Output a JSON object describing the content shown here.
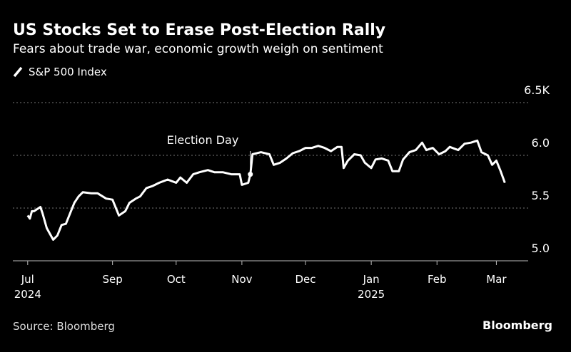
{
  "chart_data": {
    "type": "line",
    "title": "US Stocks Set to Erase Post-Election Rally",
    "subtitle": "Fears about trade war, economic growth weigh on sentiment",
    "source": "Source: Bloomberg",
    "brand": "Bloomberg",
    "annotation": {
      "text": "Election Day",
      "x": "2024-11-05"
    },
    "x": [
      "2024-07-23",
      "2024-07-24",
      "2024-07-25",
      "2024-07-26",
      "2024-07-29",
      "2024-07-30",
      "2024-08-01",
      "2024-08-04",
      "2024-08-06",
      "2024-08-08",
      "2024-08-10",
      "2024-08-12",
      "2024-08-14",
      "2024-08-16",
      "2024-08-18",
      "2024-08-22",
      "2024-08-25",
      "2024-08-29",
      "2024-09-01",
      "2024-09-04",
      "2024-09-07",
      "2024-09-09",
      "2024-09-12",
      "2024-09-14",
      "2024-09-17",
      "2024-09-20",
      "2024-09-23",
      "2024-09-27",
      "2024-10-01",
      "2024-10-03",
      "2024-10-06",
      "2024-10-09",
      "2024-10-12",
      "2024-10-16",
      "2024-10-19",
      "2024-10-23",
      "2024-10-27",
      "2024-10-31",
      "2024-11-01",
      "2024-11-04",
      "2024-11-05",
      "2024-11-06",
      "2024-11-10",
      "2024-11-14",
      "2024-11-16",
      "2024-11-19",
      "2024-11-22",
      "2024-11-25",
      "2024-11-28",
      "2024-12-01",
      "2024-12-04",
      "2024-12-07",
      "2024-12-10",
      "2024-12-13",
      "2024-12-16",
      "2024-12-18",
      "2024-12-19",
      "2024-12-21",
      "2024-12-24",
      "2024-12-27",
      "2024-12-29",
      "2025-01-01",
      "2025-01-03",
      "2025-01-06",
      "2025-01-09",
      "2025-01-11",
      "2025-01-14",
      "2025-01-16",
      "2025-01-19",
      "2025-01-22",
      "2025-01-25",
      "2025-01-27",
      "2025-01-30",
      "2025-02-02",
      "2025-02-05",
      "2025-02-07",
      "2025-02-11",
      "2025-02-14",
      "2025-02-17",
      "2025-02-20",
      "2025-02-22",
      "2025-02-25",
      "2025-02-27",
      "2025-03-01",
      "2025-03-03",
      "2025-03-05"
    ],
    "series": [
      {
        "name": "S&P 500 Index",
        "color": "#ffffff",
        "values": [
          5.43,
          5.4,
          5.47,
          5.47,
          5.51,
          5.45,
          5.31,
          5.2,
          5.24,
          5.34,
          5.35,
          5.45,
          5.55,
          5.61,
          5.65,
          5.64,
          5.64,
          5.59,
          5.58,
          5.43,
          5.47,
          5.55,
          5.59,
          5.61,
          5.69,
          5.71,
          5.74,
          5.77,
          5.74,
          5.79,
          5.74,
          5.82,
          5.84,
          5.86,
          5.84,
          5.84,
          5.82,
          5.82,
          5.72,
          5.74,
          5.82,
          6.01,
          6.03,
          6.01,
          5.91,
          5.93,
          5.97,
          6.02,
          6.04,
          6.07,
          6.07,
          6.09,
          6.07,
          6.04,
          6.08,
          6.08,
          5.88,
          5.95,
          6.01,
          6.0,
          5.93,
          5.88,
          5.96,
          5.97,
          5.95,
          5.85,
          5.85,
          5.96,
          6.03,
          6.05,
          6.12,
          6.05,
          6.07,
          6.01,
          6.04,
          6.08,
          6.05,
          6.11,
          6.12,
          6.14,
          6.03,
          6.0,
          5.91,
          5.95,
          5.85,
          5.74
        ]
      }
    ],
    "xlim": [
      "2024-07-16",
      "2025-03-16"
    ],
    "xticks": [
      {
        "value": "2024-07-23",
        "label": "Jul"
      },
      {
        "value": "2024-09-01",
        "label": "Sep"
      },
      {
        "value": "2024-10-01",
        "label": "Oct"
      },
      {
        "value": "2024-11-01",
        "label": "Nov"
      },
      {
        "value": "2024-12-01",
        "label": "Dec"
      },
      {
        "value": "2025-01-01",
        "label": "Jan"
      },
      {
        "value": "2025-02-01",
        "label": "Feb"
      },
      {
        "value": "2025-03-01",
        "label": "Mar"
      }
    ],
    "x_year_labels": [
      {
        "value": "2024-07-23",
        "label": "2024"
      },
      {
        "value": "2025-01-01",
        "label": "2025"
      }
    ],
    "ylim": [
      5.0,
      6.5
    ],
    "yticks": [
      {
        "value": 5.0,
        "label": "5.0"
      },
      5.5,
      {
        "value": 6.0,
        "label": "6.0"
      },
      {
        "value": 6.5,
        "label": "6.5K"
      }
    ],
    "grid": true
  }
}
